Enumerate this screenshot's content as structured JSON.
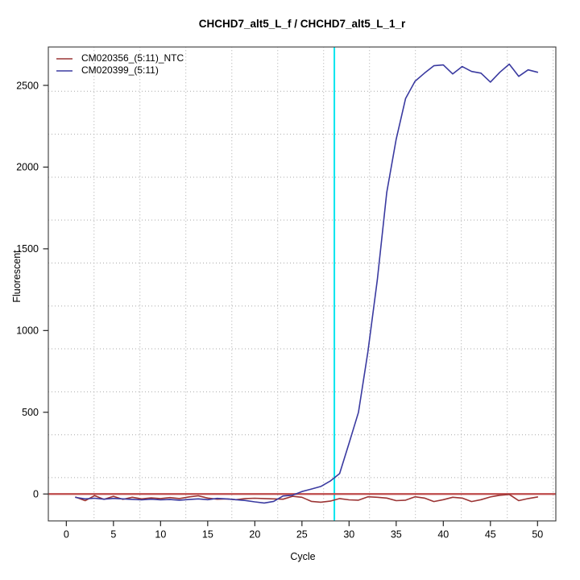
{
  "title": "CHCHD7_alt5_L_f / CHCHD7_alt5_L_1_r",
  "chart_data": {
    "type": "line",
    "title": "CHCHD7_alt5_L_f / CHCHD7_alt5_L_1_r",
    "xlabel": "Cycle",
    "ylabel": "Fluorescent",
    "xlim": [
      -1.91,
      51.94
    ],
    "ylim": [
      -165,
      2735
    ],
    "x_ticks": [
      0,
      5,
      10,
      15,
      20,
      25,
      30,
      35,
      40,
      45,
      50
    ],
    "y_ticks": [
      0,
      500,
      1000,
      1500,
      2000,
      2500
    ],
    "grid": true,
    "x_gridlines": [
      2.94,
      7.81,
      12.68,
      17.56,
      22.43,
      27.3,
      32.17,
      37.04,
      41.91,
      46.79,
      51.66
    ],
    "y_gridlines": [
      100,
      362,
      625,
      888,
      1150,
      1413,
      1676,
      1938,
      2201,
      2464
    ],
    "threshold_line": {
      "y": 0,
      "color": "#be4a4a"
    },
    "marker_line": {
      "x": 28.44,
      "color": "#00e4ee"
    },
    "legend_position": "top-left",
    "x": [
      1,
      2,
      3,
      4,
      5,
      6,
      7,
      8,
      9,
      10,
      11,
      12,
      13,
      14,
      15,
      16,
      17,
      18,
      19,
      20,
      21,
      22,
      23,
      24,
      25,
      26,
      27,
      28,
      29,
      30,
      31,
      32,
      33,
      34,
      35,
      36,
      37,
      38,
      39,
      40,
      41,
      42,
      43,
      44,
      45,
      46,
      47,
      48,
      49,
      50
    ],
    "series": [
      {
        "name": "CM020356_(5:11)_NTC",
        "color": "#9b3434",
        "values": [
          -19,
          -41,
          -10,
          -33,
          -14,
          -33,
          -20,
          -30,
          -24,
          -28,
          -22,
          -28,
          -18,
          -11,
          -25,
          -32,
          -30,
          -35,
          -28,
          -26,
          -28,
          -30,
          -32,
          -14,
          -20,
          -45,
          -50,
          -44,
          -28,
          -36,
          -38,
          -17,
          -20,
          -25,
          -41,
          -38,
          -17,
          -25,
          -46,
          -35,
          -20,
          -25,
          -46,
          -35,
          -18,
          -8,
          -3,
          -41,
          -28,
          -18
        ]
      },
      {
        "name": "CM020399_(5:11)",
        "color": "#3a3aa0",
        "values": [
          -21,
          -30,
          -26,
          -32,
          -27,
          -30,
          -33,
          -36,
          -32,
          -36,
          -34,
          -38,
          -34,
          -30,
          -35,
          -27,
          -30,
          -35,
          -40,
          -48,
          -55,
          -45,
          -12,
          -8,
          15,
          30,
          46,
          79,
          125,
          310,
          500,
          870,
          1310,
          1845,
          2170,
          2420,
          2525,
          2575,
          2620,
          2625,
          2570,
          2615,
          2585,
          2575,
          2520,
          2580,
          2630,
          2555,
          2595,
          2580
        ]
      }
    ],
    "colors": {
      "grid": "#a9a9a9",
      "box": "#4a4a4a",
      "tick": "#222222",
      "text": "#000000"
    }
  }
}
